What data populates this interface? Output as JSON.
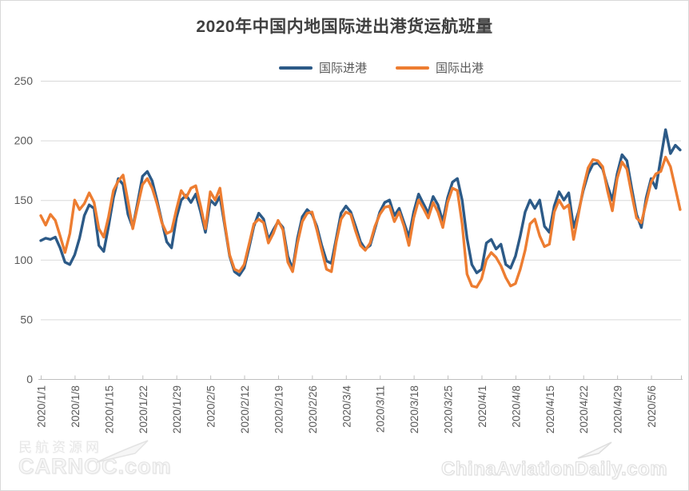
{
  "title": "2020年中国内地国际进出港货运航班量",
  "legend": {
    "items": [
      {
        "label": "国际进港",
        "color": "#2C5A87"
      },
      {
        "label": "国际出港",
        "color": "#ED7D31"
      }
    ]
  },
  "watermarks": {
    "left_line1": "民航资源网",
    "left_line2": "CARNOC.com",
    "right": "ChinaAviationDaily.com"
  },
  "colors": {
    "title": "#404040",
    "tick_label": "#595959",
    "grid": "#d9d9d9",
    "axis": "#bfbfbf",
    "series_inbound": "#2C5A87",
    "series_outbound": "#ED7D31"
  },
  "chart_data": {
    "type": "line",
    "title": "2020年中国内地国际进出港货运航班量",
    "xlabel": "",
    "ylabel": "",
    "ylim": [
      0,
      250
    ],
    "y_ticks": [
      0,
      50,
      100,
      150,
      200,
      250
    ],
    "grid": "horizontal",
    "legend_position": "top",
    "x_tick_interval_days": 7,
    "x_tick_labels": [
      "2020/1/1",
      "2020/1/8",
      "2020/1/15",
      "2020/1/22",
      "2020/1/29",
      "2020/2/5",
      "2020/2/12",
      "2020/2/19",
      "2020/2/26",
      "2020/3/4",
      "2020/3/11",
      "2020/3/18",
      "2020/3/25",
      "2020/4/1",
      "2020/4/8",
      "2020/4/15",
      "2020/4/22",
      "2020/4/29",
      "2020/5/6"
    ],
    "dates": [
      "2020/1/1",
      "2020/1/2",
      "2020/1/3",
      "2020/1/4",
      "2020/1/5",
      "2020/1/6",
      "2020/1/7",
      "2020/1/8",
      "2020/1/9",
      "2020/1/10",
      "2020/1/11",
      "2020/1/12",
      "2020/1/13",
      "2020/1/14",
      "2020/1/15",
      "2020/1/16",
      "2020/1/17",
      "2020/1/18",
      "2020/1/19",
      "2020/1/20",
      "2020/1/21",
      "2020/1/22",
      "2020/1/23",
      "2020/1/24",
      "2020/1/25",
      "2020/1/26",
      "2020/1/27",
      "2020/1/28",
      "2020/1/29",
      "2020/1/30",
      "2020/1/31",
      "2020/2/1",
      "2020/2/2",
      "2020/2/3",
      "2020/2/4",
      "2020/2/5",
      "2020/2/6",
      "2020/2/7",
      "2020/2/8",
      "2020/2/9",
      "2020/2/10",
      "2020/2/11",
      "2020/2/12",
      "2020/2/13",
      "2020/2/14",
      "2020/2/15",
      "2020/2/16",
      "2020/2/17",
      "2020/2/18",
      "2020/2/19",
      "2020/2/20",
      "2020/2/21",
      "2020/2/22",
      "2020/2/23",
      "2020/2/24",
      "2020/2/25",
      "2020/2/26",
      "2020/2/27",
      "2020/2/28",
      "2020/2/29",
      "2020/3/1",
      "2020/3/2",
      "2020/3/3",
      "2020/3/4",
      "2020/3/5",
      "2020/3/6",
      "2020/3/7",
      "2020/3/8",
      "2020/3/9",
      "2020/3/10",
      "2020/3/11",
      "2020/3/12",
      "2020/3/13",
      "2020/3/14",
      "2020/3/15",
      "2020/3/16",
      "2020/3/17",
      "2020/3/18",
      "2020/3/19",
      "2020/3/20",
      "2020/3/21",
      "2020/3/22",
      "2020/3/23",
      "2020/3/24",
      "2020/3/25",
      "2020/3/26",
      "2020/3/27",
      "2020/3/28",
      "2020/3/29",
      "2020/3/30",
      "2020/3/31",
      "2020/4/1",
      "2020/4/2",
      "2020/4/3",
      "2020/4/4",
      "2020/4/5",
      "2020/4/6",
      "2020/4/7",
      "2020/4/8",
      "2020/4/9",
      "2020/4/10",
      "2020/4/11",
      "2020/4/12",
      "2020/4/13",
      "2020/4/14",
      "2020/4/15",
      "2020/4/16",
      "2020/4/17",
      "2020/4/18",
      "2020/4/19",
      "2020/4/20",
      "2020/4/21",
      "2020/4/22",
      "2020/4/23",
      "2020/4/24",
      "2020/4/25",
      "2020/4/26",
      "2020/4/27",
      "2020/4/28",
      "2020/4/29",
      "2020/4/30",
      "2020/5/1",
      "2020/5/2",
      "2020/5/3",
      "2020/5/4",
      "2020/5/5",
      "2020/5/6",
      "2020/5/7",
      "2020/5/8",
      "2020/5/9",
      "2020/5/10",
      "2020/5/11",
      "2020/5/12"
    ],
    "series": [
      {
        "name": "国际进港",
        "color": "#2C5A87",
        "values": [
          116,
          118,
          117,
          119,
          110,
          98,
          96,
          104,
          118,
          137,
          146,
          143,
          112,
          107,
          128,
          152,
          168,
          163,
          138,
          127,
          148,
          170,
          174,
          166,
          150,
          132,
          115,
          110,
          135,
          150,
          154,
          148,
          155,
          140,
          123,
          150,
          146,
          153,
          128,
          103,
          90,
          87,
          93,
          110,
          128,
          139,
          134,
          117,
          125,
          132,
          127,
          103,
          92,
          118,
          136,
          142,
          138,
          128,
          112,
          99,
          97,
          118,
          139,
          145,
          140,
          128,
          115,
          109,
          112,
          126,
          140,
          148,
          150,
          137,
          143,
          131,
          119,
          140,
          155,
          147,
          139,
          153,
          146,
          132,
          152,
          165,
          168,
          150,
          118,
          96,
          89,
          92,
          114,
          117,
          109,
          113,
          96,
          93,
          103,
          120,
          140,
          150,
          143,
          150,
          128,
          123,
          145,
          157,
          150,
          156,
          127,
          140,
          158,
          172,
          180,
          181,
          176,
          162,
          150,
          172,
          188,
          183,
          160,
          138,
          127,
          152,
          168,
          160,
          185,
          209,
          189,
          196,
          192
        ]
      },
      {
        "name": "国际出港",
        "color": "#ED7D31",
        "values": [
          137,
          129,
          138,
          133,
          120,
          106,
          122,
          150,
          142,
          147,
          156,
          148,
          126,
          119,
          136,
          158,
          166,
          171,
          149,
          126,
          145,
          163,
          168,
          160,
          147,
          131,
          122,
          124,
          142,
          158,
          152,
          160,
          162,
          145,
          126,
          157,
          150,
          160,
          130,
          104,
          92,
          90,
          96,
          113,
          130,
          134,
          131,
          114,
          122,
          133,
          125,
          98,
          90,
          114,
          132,
          139,
          140,
          125,
          108,
          92,
          90,
          115,
          134,
          140,
          138,
          124,
          112,
          108,
          114,
          128,
          138,
          144,
          145,
          132,
          140,
          128,
          112,
          135,
          150,
          143,
          135,
          148,
          140,
          127,
          148,
          160,
          158,
          130,
          88,
          78,
          77,
          84,
          100,
          106,
          102,
          95,
          85,
          78,
          80,
          92,
          108,
          130,
          134,
          120,
          111,
          113,
          140,
          150,
          143,
          146,
          117,
          138,
          160,
          177,
          184,
          183,
          178,
          158,
          141,
          168,
          182,
          176,
          155,
          135,
          131,
          148,
          165,
          172,
          174,
          186,
          178,
          160,
          142
        ]
      }
    ]
  }
}
